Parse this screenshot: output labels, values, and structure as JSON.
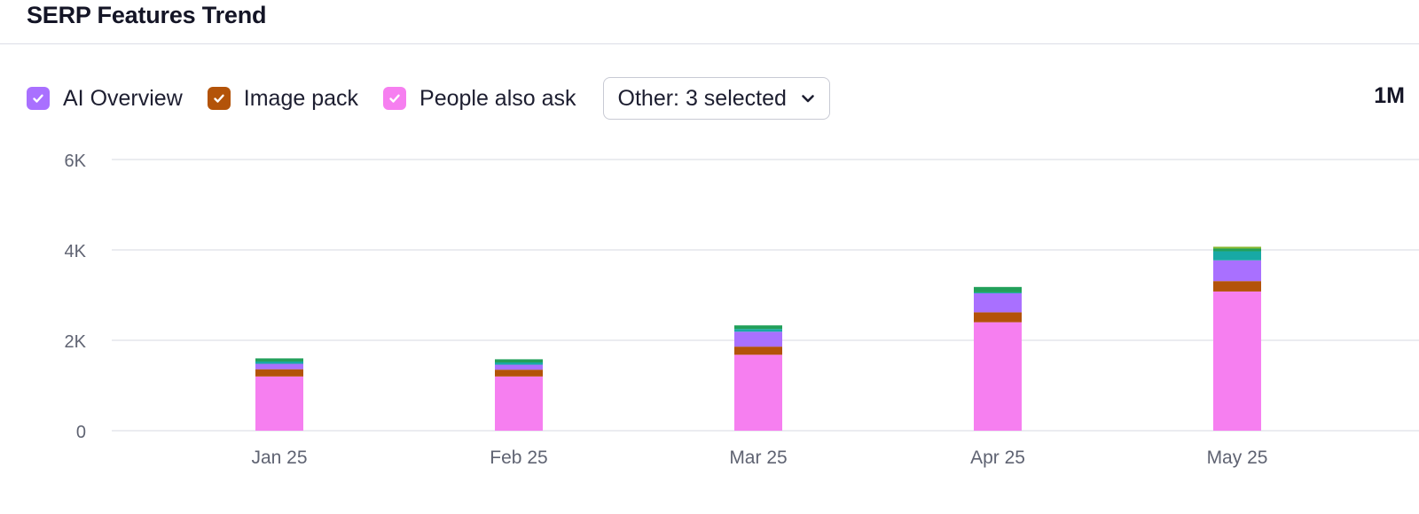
{
  "header": {
    "title": "SERP Features Trend"
  },
  "legend": {
    "items": [
      {
        "label": "AI Overview",
        "color": "#a970ff",
        "checked": true
      },
      {
        "label": "Image pack",
        "color": "#b35309",
        "checked": true
      },
      {
        "label": "People also ask",
        "color": "#f67ff0",
        "checked": true
      }
    ],
    "dropdown_label": "Other: 3 selected"
  },
  "period_label": "1M",
  "chart_data": {
    "type": "bar",
    "stacked": true,
    "categories": [
      "Jan 25",
      "Feb 25",
      "Mar 25",
      "Apr 25",
      "May 25"
    ],
    "y_ticks": [
      "0",
      "2K",
      "4K",
      "6K"
    ],
    "ylim": [
      0,
      6000
    ],
    "grid": true,
    "series": [
      {
        "name": "People also ask",
        "color": "#f67ff0",
        "values": [
          1200,
          1200,
          1680,
          2400,
          3080
        ]
      },
      {
        "name": "Image pack",
        "color": "#b35309",
        "values": [
          160,
          150,
          180,
          220,
          230
        ]
      },
      {
        "name": "AI Overview",
        "color": "#a970ff",
        "values": [
          120,
          110,
          330,
          420,
          460
        ]
      },
      {
        "color": "#18a9a5",
        "values": [
          50,
          50,
          60,
          20,
          200
        ]
      },
      {
        "color": "#22a05a",
        "values": [
          70,
          70,
          80,
          120,
          60
        ]
      },
      {
        "color": "#86b82f",
        "values": [
          0,
          0,
          0,
          0,
          40
        ]
      }
    ]
  }
}
